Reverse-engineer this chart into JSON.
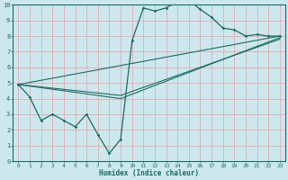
{
  "title": "",
  "xlabel": "Humidex (Indice chaleur)",
  "ylabel": "",
  "bg_color": "#cce8ee",
  "grid_color": "#e8a0a0",
  "line_color": "#1a6b60",
  "xlim": [
    -0.5,
    23.5
  ],
  "ylim": [
    0,
    10
  ],
  "xticks": [
    0,
    1,
    2,
    3,
    4,
    5,
    6,
    7,
    8,
    9,
    10,
    11,
    12,
    13,
    14,
    15,
    16,
    17,
    18,
    19,
    20,
    21,
    22,
    23
  ],
  "yticks": [
    0,
    1,
    2,
    3,
    4,
    5,
    6,
    7,
    8,
    9,
    10
  ],
  "main_x": [
    0,
    1,
    2,
    3,
    4,
    5,
    6,
    7,
    8,
    9,
    10,
    11,
    12,
    13,
    14,
    15,
    16,
    17,
    18,
    19,
    20,
    21,
    22,
    23
  ],
  "main_y": [
    4.9,
    4.1,
    2.6,
    3.0,
    2.6,
    2.2,
    3.0,
    1.7,
    0.5,
    1.4,
    7.7,
    9.8,
    9.6,
    9.8,
    10.2,
    10.3,
    9.7,
    9.2,
    8.5,
    8.4,
    8.0,
    8.1,
    8.0,
    8.0
  ],
  "trend1_x": [
    0,
    23
  ],
  "trend1_y": [
    4.9,
    8.0
  ],
  "trend2_x": [
    0,
    9,
    23
  ],
  "trend2_y": [
    4.9,
    4.0,
    7.9
  ],
  "trend3_x": [
    0,
    9,
    23
  ],
  "trend3_y": [
    4.9,
    4.2,
    7.8
  ]
}
